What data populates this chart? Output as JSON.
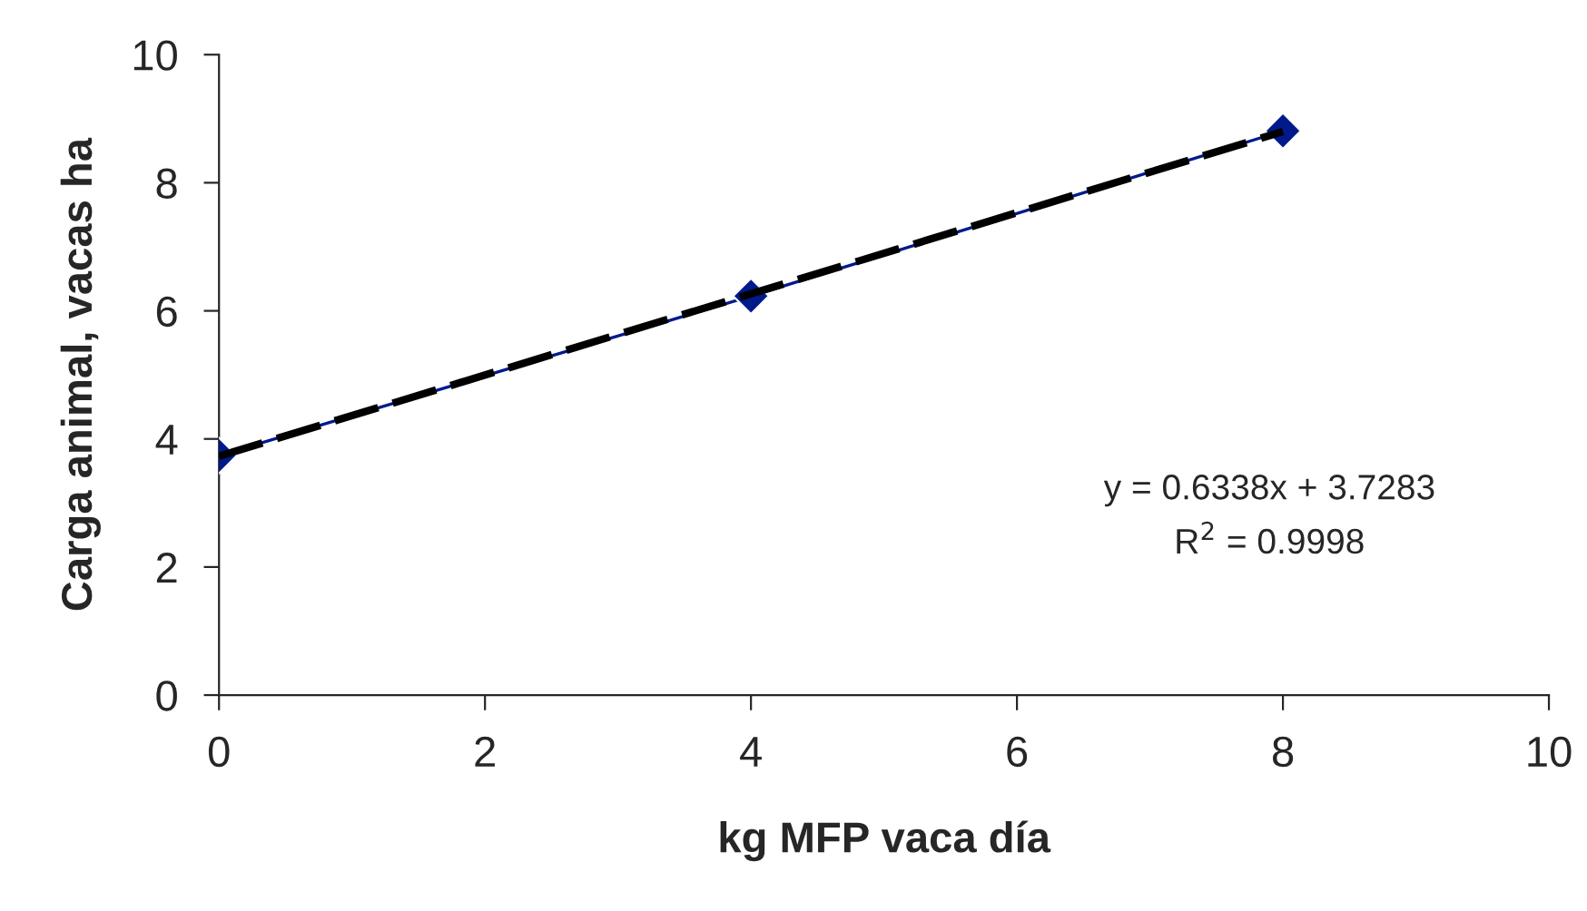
{
  "chart_data": {
    "type": "line",
    "xlabel": "kg MFP vaca día",
    "ylabel": "Carga animal, vacas ha",
    "x": [
      0,
      4,
      8
    ],
    "series": [
      {
        "color": "#001a8c",
        "values": [
          3.74,
          6.23,
          8.81
        ],
        "marker": "diamond",
        "line_style": "solid"
      },
      {
        "color": "#000000",
        "x": [
          0,
          8
        ],
        "values": [
          3.73,
          8.8
        ],
        "marker": "none",
        "line_style": "dashed"
      }
    ],
    "xlim": [
      0,
      10
    ],
    "xticks": [
      0,
      2,
      4,
      6,
      8,
      10
    ],
    "ylim": [
      0,
      10
    ],
    "yticks": [
      0,
      2,
      4,
      6,
      8,
      10
    ],
    "grid": false,
    "legend": false,
    "annotations": [
      "y = 0.6338x + 3.7283",
      "R$^{2}$ = 0.9998"
    ]
  }
}
